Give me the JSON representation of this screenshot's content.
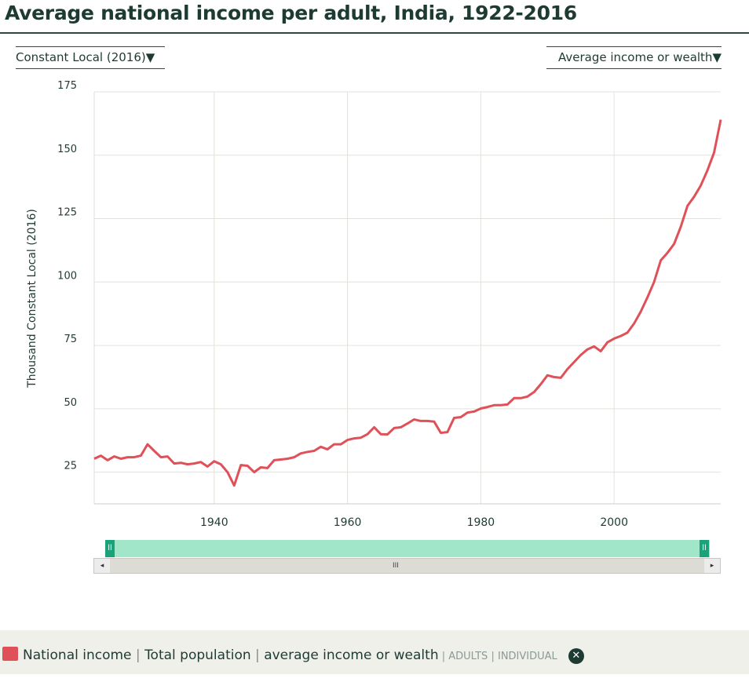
{
  "title": "Average national income per adult, India, 1922-2016",
  "controls": {
    "currency": "Constant Local (2016)",
    "indicator": "Average income or wealth"
  },
  "legend": {
    "series": "National income",
    "population": "Total population",
    "measure": "average income or wealth",
    "unit1": "ADULTS",
    "unit2": "INDIVIDUAL",
    "color": "#e05059"
  },
  "navigator": {
    "grip": "III",
    "left": "◂",
    "right": "▸"
  },
  "chart_data": {
    "type": "line",
    "title": "Average national income per adult, India, 1922-2016",
    "ylabel": "Thousand Constant Local (2016)",
    "xlabel": "",
    "xlim": [
      1922,
      2016
    ],
    "ylim": [
      12.5,
      175
    ],
    "xticks": [
      1940,
      1960,
      1980,
      2000
    ],
    "yticks": [
      25,
      50,
      75,
      100,
      125,
      150,
      175
    ],
    "grid": true,
    "series": [
      {
        "name": "National income",
        "color": "#e05059",
        "x": [
          1922,
          1923,
          1924,
          1925,
          1926,
          1927,
          1928,
          1929,
          1930,
          1931,
          1932,
          1933,
          1934,
          1935,
          1936,
          1937,
          1938,
          1939,
          1940,
          1941,
          1942,
          1943,
          1944,
          1945,
          1946,
          1947,
          1948,
          1949,
          1950,
          1951,
          1952,
          1953,
          1954,
          1955,
          1956,
          1957,
          1958,
          1959,
          1960,
          1961,
          1962,
          1963,
          1964,
          1965,
          1966,
          1967,
          1968,
          1969,
          1970,
          1971,
          1972,
          1973,
          1974,
          1975,
          1976,
          1977,
          1978,
          1979,
          1980,
          1981,
          1982,
          1983,
          1984,
          1985,
          1986,
          1987,
          1988,
          1989,
          1990,
          1991,
          1992,
          1993,
          1994,
          1995,
          1996,
          1997,
          1998,
          1999,
          2000,
          2001,
          2002,
          2003,
          2004,
          2005,
          2006,
          2007,
          2008,
          2009,
          2010,
          2011,
          2012,
          2013,
          2014,
          2015,
          2016
        ],
        "values": [
          30.3,
          31.5,
          29.7,
          31.2,
          30.3,
          30.9,
          30.9,
          31.5,
          36,
          33.4,
          30.9,
          31.2,
          28.4,
          28.7,
          28.1,
          28.4,
          29,
          27.2,
          29.3,
          28.1,
          25,
          19.7,
          27.8,
          27.5,
          25,
          26.9,
          26.6,
          29.7,
          30,
          30.3,
          30.9,
          32.4,
          33,
          33.4,
          35,
          34,
          36,
          36,
          37.7,
          38.3,
          38.6,
          40,
          42.7,
          40,
          39.9,
          42.4,
          42.7,
          44.2,
          45.8,
          45.2,
          45.2,
          44.9,
          40.5,
          40.8,
          46.4,
          46.7,
          48.5,
          48.9,
          50.1,
          50.7,
          51.4,
          51.4,
          51.7,
          54.2,
          54.2,
          54.8,
          56.6,
          59.7,
          63.2,
          62.5,
          62.2,
          65.6,
          68.4,
          71.2,
          73.4,
          74.6,
          72.7,
          76.2,
          77.7,
          78.7,
          80,
          83.6,
          88.3,
          93.9,
          100,
          108.5,
          111.5,
          115,
          121.8,
          130,
          133.6,
          138,
          144,
          151,
          164
        ]
      }
    ]
  }
}
